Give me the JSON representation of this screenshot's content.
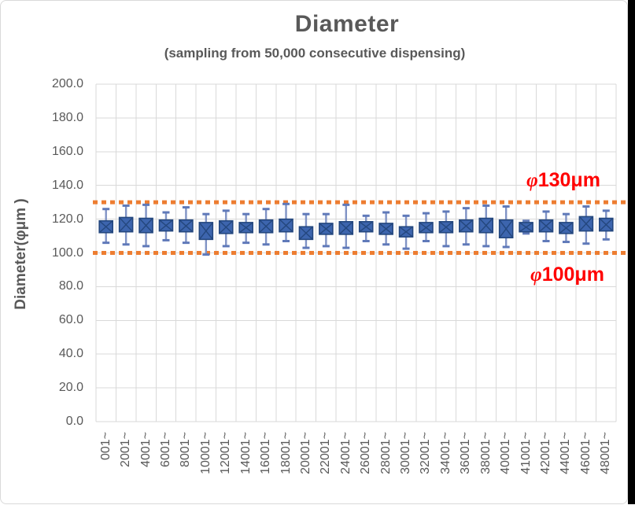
{
  "chart_data": {
    "type": "boxplot",
    "title": "Diameter",
    "subtitle": "(sampling from 50,000 consecutive dispensing)",
    "ylabel": "Diameter(φμm )",
    "xlabel": "",
    "ylim": [
      0,
      200
    ],
    "ytick_step": 20,
    "ytick_labels": [
      "200.0",
      "180.0",
      "160.0",
      "140.0",
      "120.0",
      "100.0",
      "80.0",
      "60.0",
      "40.0",
      "20.0",
      "0.0"
    ],
    "grid": true,
    "legend": "none",
    "categories": [
      "001~",
      "2001~",
      "4001~",
      "6001~",
      "8001~",
      "10001~",
      "12001~",
      "14001~",
      "16001~",
      "18001~",
      "20001~",
      "22001~",
      "24001~",
      "26001~",
      "28001~",
      "30001~",
      "32001~",
      "34001~",
      "36001~",
      "38001~",
      "40001~",
      "41001~",
      "42001~",
      "44001~",
      "46001~",
      "48001~"
    ],
    "series": [
      {
        "name": "Diameter",
        "marker": "x-cross-box-with-whiskers",
        "boxes": [
          {
            "category": "001~",
            "whisker_low": 106,
            "q1": 112,
            "q3": 119,
            "whisker_high": 126
          },
          {
            "category": "2001~",
            "whisker_low": 105,
            "q1": 112.5,
            "q3": 121,
            "whisker_high": 128
          },
          {
            "category": "4001~",
            "whisker_low": 104,
            "q1": 112,
            "q3": 120.5,
            "whisker_high": 128.5
          },
          {
            "category": "6001~",
            "whisker_low": 107.5,
            "q1": 113,
            "q3": 119.5,
            "whisker_high": 124
          },
          {
            "category": "8001~",
            "whisker_low": 106,
            "q1": 112.5,
            "q3": 119.5,
            "whisker_high": 127
          },
          {
            "category": "10001~",
            "whisker_low": 99,
            "q1": 108,
            "q3": 118,
            "whisker_high": 123
          },
          {
            "category": "12001~",
            "whisker_low": 104,
            "q1": 111.5,
            "q3": 119,
            "whisker_high": 125
          },
          {
            "category": "14001~",
            "whisker_low": 106,
            "q1": 112,
            "q3": 118,
            "whisker_high": 123
          },
          {
            "category": "16001~",
            "whisker_low": 105,
            "q1": 112,
            "q3": 119.5,
            "whisker_high": 126
          },
          {
            "category": "18001~",
            "whisker_low": 107,
            "q1": 112.5,
            "q3": 120,
            "whisker_high": 129
          },
          {
            "category": "20001~",
            "whisker_low": 103,
            "q1": 108,
            "q3": 115.5,
            "whisker_high": 123
          },
          {
            "category": "22001~",
            "whisker_low": 104,
            "q1": 111,
            "q3": 117.5,
            "whisker_high": 123
          },
          {
            "category": "24001~",
            "whisker_low": 103,
            "q1": 111,
            "q3": 118.5,
            "whisker_high": 128.5
          },
          {
            "category": "26001~",
            "whisker_low": 107,
            "q1": 112.5,
            "q3": 118.5,
            "whisker_high": 122
          },
          {
            "category": "28001~",
            "whisker_low": 105,
            "q1": 111,
            "q3": 117.5,
            "whisker_high": 124
          },
          {
            "category": "30001~",
            "whisker_low": 102.5,
            "q1": 109.5,
            "q3": 115.5,
            "whisker_high": 122
          },
          {
            "category": "32001~",
            "whisker_low": 107,
            "q1": 112,
            "q3": 118,
            "whisker_high": 123.5
          },
          {
            "category": "34001~",
            "whisker_low": 104,
            "q1": 112,
            "q3": 118.5,
            "whisker_high": 124.5
          },
          {
            "category": "36001~",
            "whisker_low": 105,
            "q1": 112.5,
            "q3": 119.5,
            "whisker_high": 126.5
          },
          {
            "category": "38001~",
            "whisker_low": 104,
            "q1": 112,
            "q3": 120.5,
            "whisker_high": 128
          },
          {
            "category": "40001~",
            "whisker_low": 103.5,
            "q1": 109,
            "q3": 119.5,
            "whisker_high": 127.5
          },
          {
            "category": "41001~",
            "whisker_low": 111.5,
            "q1": 112.5,
            "q3": 118,
            "whisker_high": 119
          },
          {
            "category": "42001~",
            "whisker_low": 107,
            "q1": 112.5,
            "q3": 119.5,
            "whisker_high": 124.5
          },
          {
            "category": "44001~",
            "whisker_low": 106.5,
            "q1": 111.5,
            "q3": 118,
            "whisker_high": 123
          },
          {
            "category": "46001~",
            "whisker_low": 105.5,
            "q1": 113,
            "q3": 121.5,
            "whisker_high": 127.5
          },
          {
            "category": "48001~",
            "whisker_low": 108,
            "q1": 113,
            "q3": 120.5,
            "whisker_high": 125
          }
        ]
      }
    ],
    "ref_lines": [
      {
        "value": 130,
        "label": "φ130μm",
        "style": "dotted",
        "label_position": "above-right"
      },
      {
        "value": 100,
        "label": "φ100μm",
        "style": "dotted",
        "label_position": "below-right"
      }
    ],
    "colors": {
      "box_fill": "#3d65ae",
      "box_border": "#24477e",
      "whisker": "#8093c5",
      "whisker_cap": "#5f79b9",
      "ref_line": "#ed7d31",
      "annotation_text": "#ff0000",
      "text": "#595959",
      "gridline": "#d9d9d9"
    }
  }
}
